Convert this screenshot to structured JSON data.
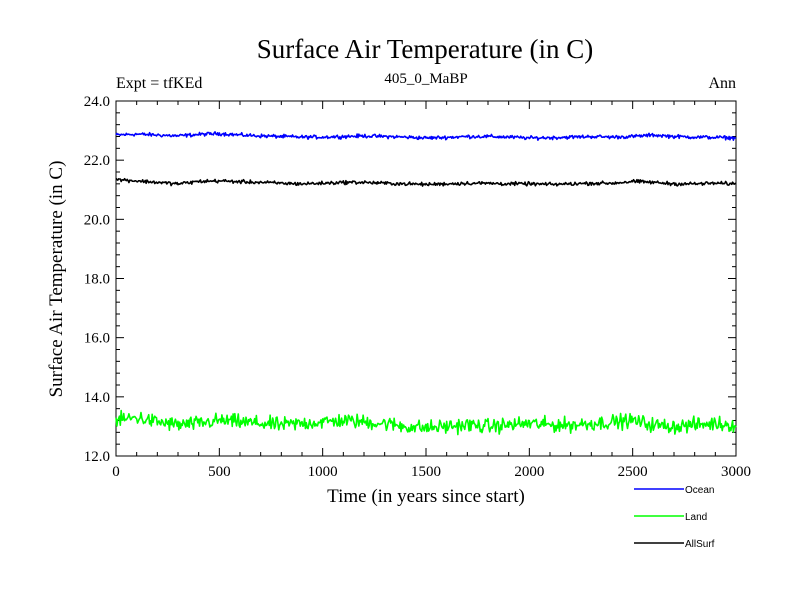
{
  "chart_data": {
    "type": "line",
    "title": "Surface Air Temperature (in C)",
    "subtitle_left": "Expt = tfKEd",
    "subtitle_center": "405_0_MaBP",
    "subtitle_right": "Ann",
    "xlabel": "Time (in years since start)",
    "ylabel": "Surface Air Temperature (in C)",
    "xlim": [
      0,
      3000
    ],
    "ylim": [
      12.0,
      24.0
    ],
    "xticks": [
      0,
      500,
      1000,
      1500,
      2000,
      2500,
      3000
    ],
    "xtick_labels": [
      "0",
      "500",
      "1000",
      "1500",
      "2000",
      "2500",
      "3000"
    ],
    "yticks": [
      12.0,
      14.0,
      16.0,
      18.0,
      20.0,
      22.0,
      24.0
    ],
    "ytick_labels": [
      "12.0",
      "14.0",
      "16.0",
      "18.0",
      "20.0",
      "22.0",
      "24.0"
    ],
    "grid": false,
    "legend_position": "bottom-right, outside plot",
    "series": [
      {
        "name": "Ocean",
        "color": "#0000ff",
        "x": [
          0,
          100,
          200,
          300,
          400,
          500,
          600,
          700,
          800,
          900,
          1000,
          1100,
          1200,
          1300,
          1400,
          1500,
          1600,
          1700,
          1800,
          1900,
          2000,
          2100,
          2200,
          2300,
          2400,
          2500,
          2600,
          2700,
          2800,
          2900,
          3000
        ],
        "values": [
          22.85,
          22.88,
          22.85,
          22.82,
          22.87,
          22.9,
          22.85,
          22.82,
          22.8,
          22.78,
          22.78,
          22.8,
          22.82,
          22.8,
          22.78,
          22.75,
          22.77,
          22.8,
          22.8,
          22.78,
          22.75,
          22.76,
          22.78,
          22.8,
          22.78,
          22.8,
          22.85,
          22.8,
          22.78,
          22.77,
          22.75
        ]
      },
      {
        "name": "Land",
        "color": "#00ff00",
        "x": [
          0,
          100,
          200,
          300,
          400,
          500,
          600,
          700,
          800,
          900,
          1000,
          1100,
          1200,
          1300,
          1400,
          1500,
          1600,
          1700,
          1800,
          1900,
          2000,
          2100,
          2200,
          2300,
          2400,
          2500,
          2600,
          2700,
          2800,
          2900,
          3000
        ],
        "values": [
          13.2,
          13.3,
          13.15,
          13.05,
          13.1,
          13.2,
          13.15,
          13.1,
          13.05,
          13.1,
          13.15,
          13.2,
          13.15,
          13.1,
          13.0,
          12.95,
          13.0,
          13.05,
          13.0,
          13.05,
          13.1,
          13.05,
          13.05,
          13.1,
          13.15,
          13.2,
          13.05,
          13.0,
          13.05,
          13.1,
          13.05
        ]
      },
      {
        "name": "AllSurf",
        "color": "#000000",
        "x": [
          0,
          100,
          200,
          300,
          400,
          500,
          600,
          700,
          800,
          900,
          1000,
          1100,
          1200,
          1300,
          1400,
          1500,
          1600,
          1700,
          1800,
          1900,
          2000,
          2100,
          2200,
          2300,
          2400,
          2500,
          2600,
          2700,
          2800,
          2900,
          3000
        ],
        "values": [
          21.35,
          21.3,
          21.25,
          21.2,
          21.28,
          21.3,
          21.27,
          21.25,
          21.22,
          21.2,
          21.22,
          21.25,
          21.25,
          21.22,
          21.2,
          21.18,
          21.2,
          21.22,
          21.22,
          21.2,
          21.2,
          21.18,
          21.2,
          21.22,
          21.22,
          21.28,
          21.25,
          21.2,
          21.2,
          21.22,
          21.2
        ]
      }
    ]
  }
}
